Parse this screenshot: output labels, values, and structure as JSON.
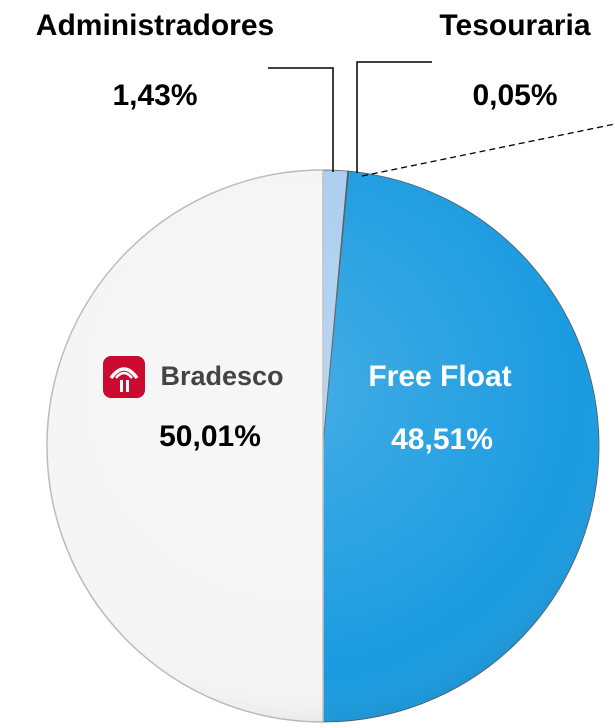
{
  "chart_data": {
    "type": "pie",
    "categories": [
      "Administradores",
      "Tesouraria",
      "Free Float",
      "Bradesco"
    ],
    "values": [
      1.43,
      0.05,
      48.51,
      50.01
    ],
    "value_labels": [
      "1,43%",
      "0,05%",
      "48,51%",
      "50,01%"
    ],
    "colors": [
      "#a9cdf0",
      "#0a2a66",
      "#1a9be0",
      "#f5f5f5"
    ]
  }
}
